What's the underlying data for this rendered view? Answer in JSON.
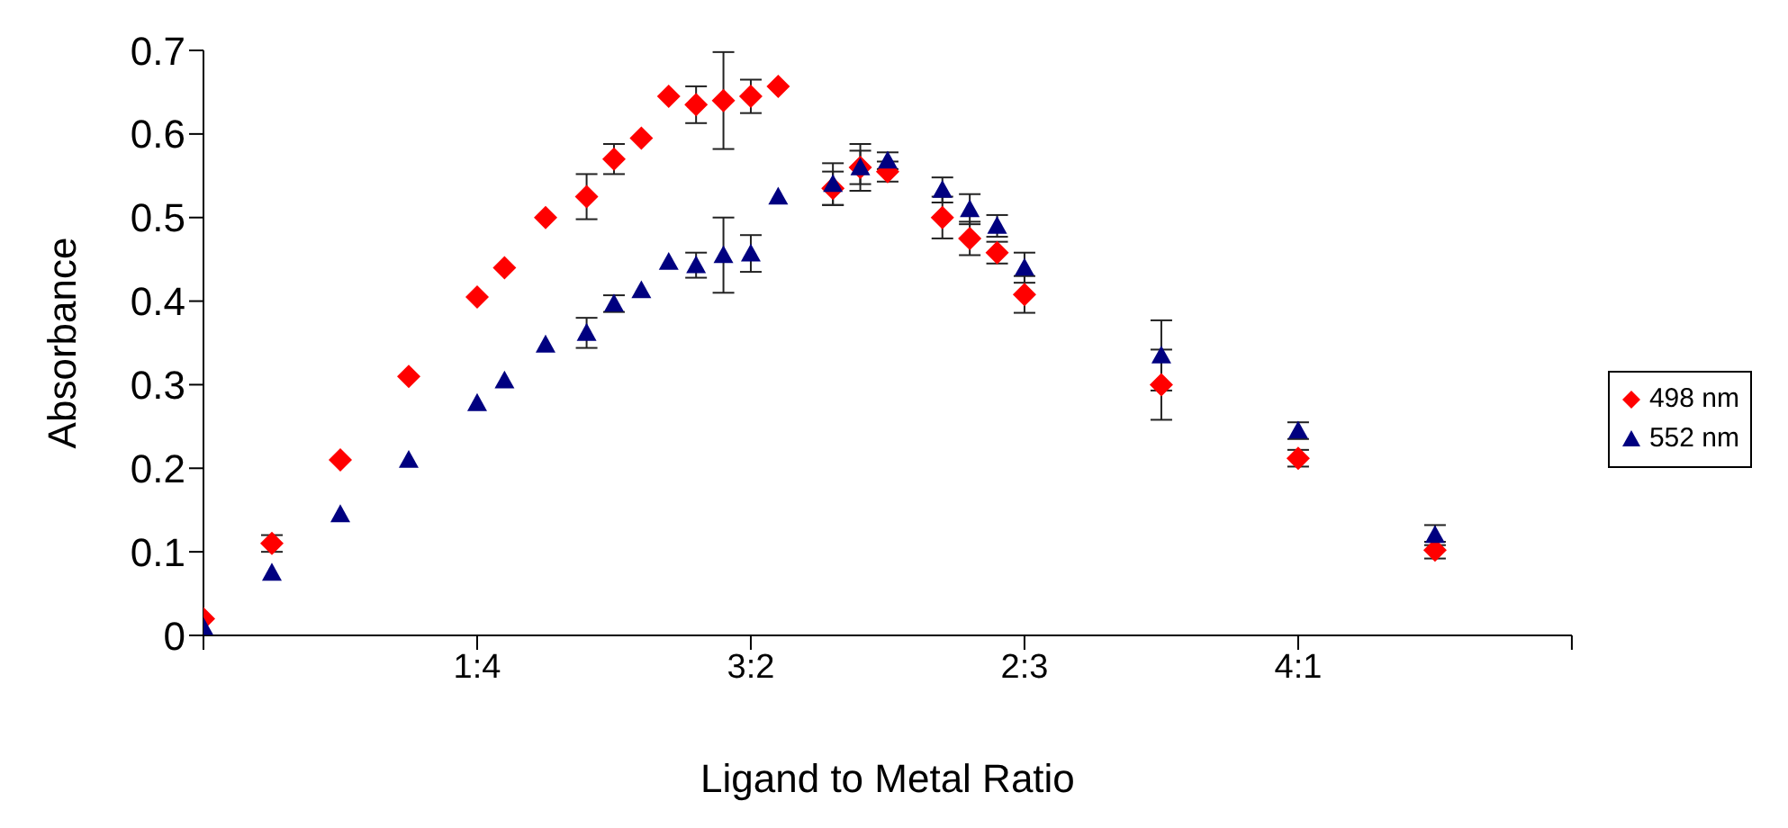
{
  "chart_data": {
    "type": "scatter",
    "xlabel": "Ligand to Metal Ratio",
    "ylabel": "Absorbance",
    "categories": [
      null,
      null,
      null,
      null,
      null,
      null,
      null,
      null,
      null,
      null,
      null,
      null,
      null,
      null,
      null,
      null,
      null,
      null,
      null,
      null,
      "1:4",
      null,
      null,
      null,
      null,
      null,
      null,
      null,
      null,
      null,
      null,
      null,
      null,
      null,
      null,
      null,
      null,
      null,
      null,
      null,
      "3:2",
      null,
      null,
      null,
      null,
      null,
      null,
      null,
      null,
      null,
      null,
      null,
      null,
      null,
      null,
      null,
      null,
      null,
      null,
      null,
      "2:3",
      null,
      null,
      null,
      null,
      null,
      null,
      null,
      null,
      null,
      null,
      null,
      null,
      null,
      null,
      null,
      null,
      null,
      null,
      null,
      "4:1",
      null,
      null,
      null,
      null,
      null,
      null,
      null,
      null,
      null,
      null,
      null,
      null,
      null,
      null,
      null,
      null,
      null,
      null,
      null,
      null
    ],
    "series": [
      {
        "name": "498 nm",
        "color": "#ff0000",
        "marker": "diamond",
        "values": [
          0.02,
          null,
          null,
          null,
          null,
          0.11,
          null,
          null,
          null,
          null,
          0.21,
          null,
          null,
          null,
          null,
          0.31,
          null,
          null,
          null,
          null,
          0.405,
          null,
          0.44,
          null,
          null,
          0.5,
          null,
          null,
          0.525,
          null,
          0.57,
          null,
          0.595,
          null,
          0.645,
          null,
          0.635,
          null,
          0.64,
          null,
          0.645,
          null,
          0.657,
          null,
          null,
          null,
          0.535,
          null,
          0.56,
          null,
          0.555,
          null,
          null,
          null,
          0.5,
          null,
          0.475,
          null,
          0.458,
          null,
          0.408,
          null,
          null,
          null,
          null,
          null,
          null,
          null,
          null,
          null,
          0.3,
          null,
          null,
          null,
          null,
          null,
          null,
          null,
          null,
          null,
          0.212,
          null,
          null,
          null,
          null,
          null,
          null,
          null,
          null,
          null,
          0.102,
          null,
          null,
          null,
          null,
          null,
          null,
          null,
          null,
          null,
          null
        ],
        "errors": [
          null,
          null,
          null,
          null,
          null,
          0.01,
          null,
          null,
          null,
          null,
          null,
          null,
          null,
          null,
          null,
          null,
          null,
          null,
          null,
          null,
          null,
          null,
          null,
          null,
          null,
          null,
          null,
          null,
          0.027,
          null,
          0.018,
          null,
          null,
          null,
          null,
          null,
          0.022,
          null,
          0.058,
          null,
          0.02,
          null,
          null,
          null,
          null,
          null,
          0.02,
          null,
          0.02,
          null,
          0.012,
          null,
          null,
          null,
          0.025,
          null,
          0.02,
          null,
          0.013,
          null,
          0.022,
          null,
          null,
          null,
          null,
          null,
          null,
          null,
          null,
          null,
          0.042,
          null,
          null,
          null,
          null,
          null,
          null,
          null,
          null,
          null,
          0.01,
          null,
          null,
          null,
          null,
          null,
          null,
          null,
          null,
          null,
          0.01,
          null,
          null,
          null,
          null,
          null,
          null,
          null,
          null,
          null,
          null
        ]
      },
      {
        "name": "552 nm",
        "color": "#000080",
        "marker": "triangle",
        "values": [
          0.01,
          null,
          null,
          null,
          null,
          0.075,
          null,
          null,
          null,
          null,
          0.145,
          null,
          null,
          null,
          null,
          0.21,
          null,
          null,
          null,
          null,
          0.278,
          null,
          0.305,
          null,
          null,
          0.348,
          null,
          null,
          0.362,
          null,
          0.397,
          null,
          0.413,
          null,
          0.447,
          null,
          0.443,
          null,
          0.455,
          null,
          0.457,
          null,
          0.525,
          null,
          null,
          null,
          0.54,
          null,
          0.56,
          null,
          0.568,
          null,
          null,
          null,
          0.533,
          null,
          0.51,
          null,
          0.49,
          null,
          0.44,
          null,
          null,
          null,
          null,
          null,
          null,
          null,
          null,
          null,
          0.335,
          null,
          null,
          null,
          null,
          null,
          null,
          null,
          null,
          null,
          0.245,
          null,
          null,
          null,
          null,
          null,
          null,
          null,
          null,
          null,
          0.12,
          null,
          null,
          null,
          null,
          null,
          null,
          null,
          null,
          null,
          null
        ],
        "errors": [
          null,
          null,
          null,
          null,
          null,
          null,
          null,
          null,
          null,
          null,
          null,
          null,
          null,
          null,
          null,
          null,
          null,
          null,
          null,
          null,
          null,
          null,
          null,
          null,
          null,
          null,
          null,
          null,
          0.018,
          null,
          0.01,
          null,
          null,
          null,
          null,
          null,
          0.015,
          null,
          0.045,
          null,
          0.022,
          null,
          null,
          null,
          null,
          null,
          0.025,
          null,
          0.028,
          null,
          0.01,
          null,
          null,
          null,
          0.015,
          null,
          0.018,
          null,
          0.013,
          null,
          0.018,
          null,
          null,
          null,
          null,
          null,
          null,
          null,
          null,
          null,
          0.042,
          null,
          null,
          null,
          null,
          null,
          null,
          null,
          null,
          null,
          0.01,
          null,
          null,
          null,
          null,
          null,
          null,
          null,
          null,
          null,
          0.012,
          null,
          null,
          null,
          null,
          null,
          null,
          null,
          null,
          null,
          null
        ]
      }
    ],
    "ylim": [
      0,
      0.7
    ],
    "yticks": [
      0,
      0.1,
      0.2,
      0.3,
      0.4,
      0.5,
      0.6,
      0.7
    ],
    "grid": false,
    "legend": "right"
  }
}
